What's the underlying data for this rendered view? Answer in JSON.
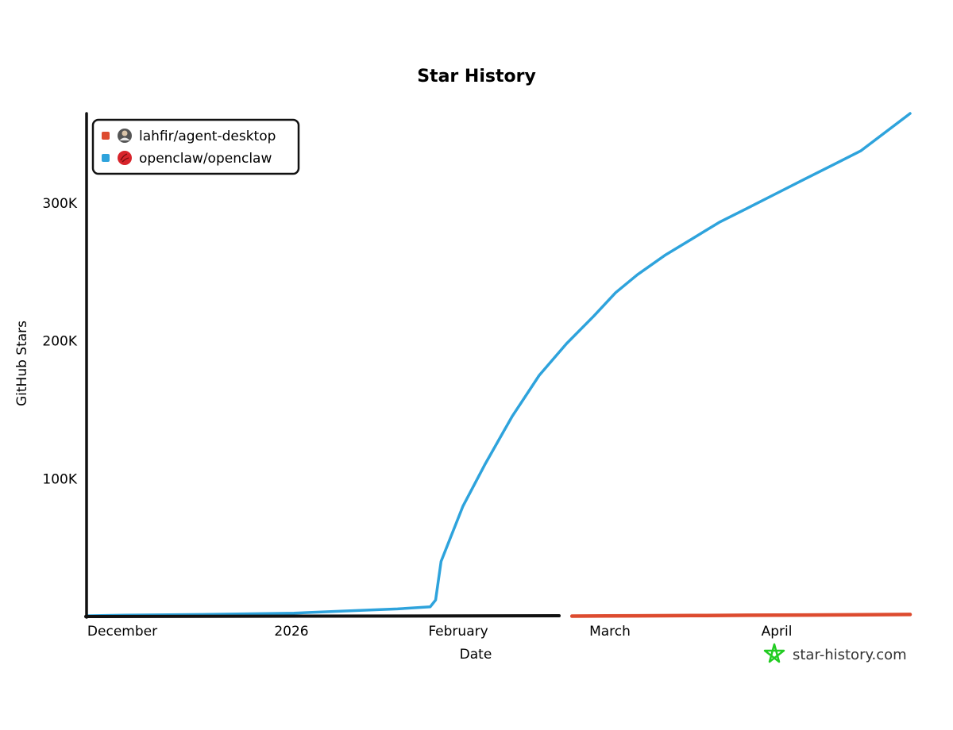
{
  "colors": {
    "series_1": "#dd4b2f",
    "series_2": "#2ea3dc",
    "axis": "#111111",
    "watermark": "#22cc22"
  },
  "watermark": {
    "text": "star-history.com",
    "icon": "star-outline-icon"
  },
  "chart_data": {
    "type": "line",
    "title": "Star History",
    "xlabel": "Date",
    "ylabel": "GitHub Stars",
    "x_ticks": [
      "December",
      "2026",
      "February",
      "March",
      "April"
    ],
    "y_ticks": [
      "100K",
      "200K",
      "300K"
    ],
    "y_tick_values": [
      100000,
      200000,
      300000
    ],
    "xlim": [
      "2025-11-24",
      "2026-04-24"
    ],
    "ylim": [
      0,
      365000
    ],
    "grid": false,
    "legend": "top-left",
    "series": [
      {
        "name": "lahfir/agent-desktop",
        "avatar": "avatar-icon",
        "x": [
          "2026-02-21",
          "2026-03-05",
          "2026-03-15",
          "2026-03-25",
          "2026-04-05",
          "2026-04-15",
          "2026-04-24"
        ],
        "y": [
          300,
          500,
          700,
          900,
          1100,
          1300,
          1500
        ]
      },
      {
        "name": "openclaw/openclaw",
        "avatar": "claw-logo-icon",
        "x": [
          "2025-11-24",
          "2025-12-01",
          "2025-12-15",
          "2026-01-01",
          "2026-01-10",
          "2026-01-20",
          "2026-01-26",
          "2026-01-27",
          "2026-01-28",
          "2026-02-01",
          "2026-02-05",
          "2026-02-10",
          "2026-02-15",
          "2026-02-20",
          "2026-02-25",
          "2026-03-01",
          "2026-03-05",
          "2026-03-10",
          "2026-03-15",
          "2026-03-20",
          "2026-03-25",
          "2026-03-30",
          "2026-04-05",
          "2026-04-10",
          "2026-04-15",
          "2026-04-24"
        ],
        "y": [
          500,
          1000,
          1500,
          2500,
          4000,
          5500,
          7000,
          12000,
          40000,
          80000,
          110000,
          145000,
          175000,
          198000,
          218000,
          235000,
          248000,
          262000,
          274000,
          286000,
          296000,
          306000,
          318000,
          328000,
          338000,
          365000
        ]
      }
    ]
  }
}
